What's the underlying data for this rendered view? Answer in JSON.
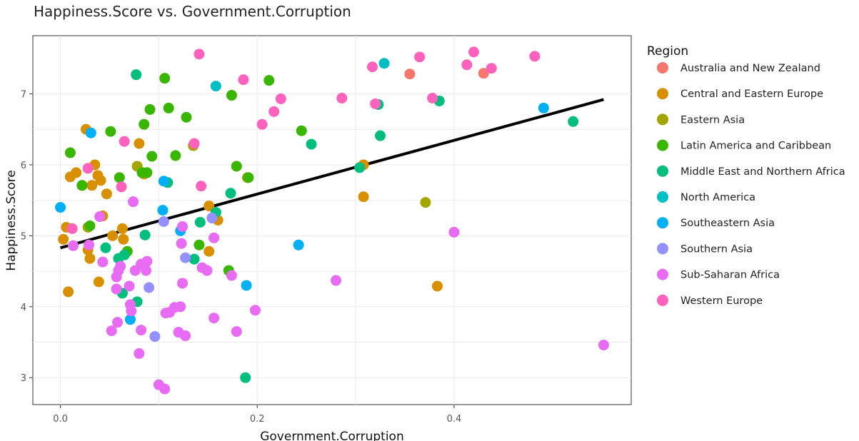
{
  "chart_data": {
    "type": "scatter",
    "title": "Happiness.Score vs. Government.Corruption",
    "xlabel": "Government.Corruption",
    "ylabel": "Happiness.Score",
    "xlim": [
      -0.028,
      0.58
    ],
    "ylim": [
      2.62,
      7.82
    ],
    "x_ticks": [
      0.0,
      0.2,
      0.4
    ],
    "x_tick_labels": [
      "0.0",
      "0.2",
      "0.4"
    ],
    "y_ticks": [
      3,
      4,
      5,
      6,
      7
    ],
    "y_tick_labels": [
      "3",
      "4",
      "5",
      "6",
      "7"
    ],
    "grid": true,
    "legend": {
      "title": "Region",
      "position": "right"
    },
    "trend_line": {
      "x": [
        0.0,
        0.552
      ],
      "y": [
        4.83,
        6.92
      ],
      "color": "#000000"
    },
    "series": [
      {
        "name": "Australia and New Zealand",
        "color": "#F8766D",
        "points": [
          [
            0.355,
            7.28
          ],
          [
            0.43,
            7.29
          ]
        ]
      },
      {
        "name": "Central and Eastern Europe",
        "color": "#D89000",
        "points": [
          [
            0.003,
            4.95
          ],
          [
            0.006,
            5.12
          ],
          [
            0.008,
            4.21
          ],
          [
            0.01,
            5.83
          ],
          [
            0.016,
            5.89
          ],
          [
            0.022,
            5.71
          ],
          [
            0.026,
            6.5
          ],
          [
            0.028,
            4.8
          ],
          [
            0.03,
            4.68
          ],
          [
            0.032,
            5.71
          ],
          [
            0.035,
            6.0
          ],
          [
            0.038,
            5.85
          ],
          [
            0.039,
            4.35
          ],
          [
            0.041,
            5.78
          ],
          [
            0.043,
            5.28
          ],
          [
            0.047,
            5.59
          ],
          [
            0.053,
            5.0
          ],
          [
            0.063,
            5.1
          ],
          [
            0.064,
            4.95
          ],
          [
            0.08,
            6.3
          ],
          [
            0.085,
            5.87
          ],
          [
            0.151,
            5.42
          ],
          [
            0.151,
            4.78
          ],
          [
            0.16,
            5.22
          ],
          [
            0.19,
            5.82
          ],
          [
            0.308,
            6.0
          ],
          [
            0.308,
            5.55
          ],
          [
            0.383,
            4.29
          ]
        ]
      },
      {
        "name": "Eastern Asia",
        "color": "#A3A500",
        "points": [
          [
            0.028,
            5.12
          ],
          [
            0.078,
            5.98
          ],
          [
            0.135,
            6.27
          ],
          [
            0.371,
            5.47
          ]
        ]
      },
      {
        "name": "Latin America and Caribbean",
        "color": "#39B600",
        "points": [
          [
            0.01,
            6.17
          ],
          [
            0.022,
            5.71
          ],
          [
            0.03,
            5.14
          ],
          [
            0.051,
            6.47
          ],
          [
            0.06,
            5.82
          ],
          [
            0.068,
            4.78
          ],
          [
            0.083,
            5.89
          ],
          [
            0.085,
            6.57
          ],
          [
            0.088,
            5.89
          ],
          [
            0.091,
            6.78
          ],
          [
            0.093,
            6.12
          ],
          [
            0.106,
            7.22
          ],
          [
            0.11,
            6.8
          ],
          [
            0.117,
            6.13
          ],
          [
            0.128,
            6.67
          ],
          [
            0.141,
            4.87
          ],
          [
            0.171,
            4.51
          ],
          [
            0.174,
            6.98
          ],
          [
            0.179,
            5.98
          ],
          [
            0.191,
            5.82
          ],
          [
            0.212,
            7.19
          ],
          [
            0.245,
            6.48
          ]
        ]
      },
      {
        "name": "Middle East and Northern Africa",
        "color": "#00BF7D",
        "points": [
          [
            0.046,
            4.83
          ],
          [
            0.059,
            4.68
          ],
          [
            0.063,
            4.19
          ],
          [
            0.065,
            4.73
          ],
          [
            0.077,
            7.27
          ],
          [
            0.078,
            4.07
          ],
          [
            0.086,
            5.01
          ],
          [
            0.109,
            5.75
          ],
          [
            0.136,
            4.67
          ],
          [
            0.142,
            5.19
          ],
          [
            0.158,
            5.33
          ],
          [
            0.173,
            5.6
          ],
          [
            0.188,
            3.0
          ],
          [
            0.255,
            6.29
          ],
          [
            0.304,
            5.96
          ],
          [
            0.323,
            6.85
          ],
          [
            0.325,
            6.41
          ],
          [
            0.385,
            6.9
          ],
          [
            0.521,
            6.61
          ]
        ]
      },
      {
        "name": "North America",
        "color": "#00BFC4",
        "points": [
          [
            0.158,
            7.11
          ],
          [
            0.329,
            7.43
          ]
        ]
      },
      {
        "name": "Southeastern Asia",
        "color": "#00B0F6",
        "points": [
          [
            0.0,
            5.4
          ],
          [
            0.031,
            6.45
          ],
          [
            0.071,
            3.82
          ],
          [
            0.104,
            5.36
          ],
          [
            0.105,
            5.77
          ],
          [
            0.122,
            5.07
          ],
          [
            0.189,
            4.3
          ],
          [
            0.242,
            4.87
          ],
          [
            0.491,
            6.8
          ]
        ]
      },
      {
        "name": "Southern Asia",
        "color": "#9590FF",
        "points": [
          [
            0.09,
            4.27
          ],
          [
            0.096,
            3.58
          ],
          [
            0.105,
            5.2
          ],
          [
            0.127,
            4.69
          ],
          [
            0.154,
            5.25
          ]
        ]
      },
      {
        "name": "Sub-Saharan Africa",
        "color": "#E76BF3",
        "points": [
          [
            0.013,
            4.86
          ],
          [
            0.029,
            4.87
          ],
          [
            0.04,
            5.27
          ],
          [
            0.043,
            4.63
          ],
          [
            0.052,
            3.66
          ],
          [
            0.057,
            4.25
          ],
          [
            0.057,
            4.42
          ],
          [
            0.058,
            3.78
          ],
          [
            0.059,
            4.51
          ],
          [
            0.061,
            4.57
          ],
          [
            0.07,
            4.29
          ],
          [
            0.071,
            4.03
          ],
          [
            0.072,
            3.94
          ],
          [
            0.074,
            5.48
          ],
          [
            0.076,
            4.51
          ],
          [
            0.08,
            3.34
          ],
          [
            0.082,
            3.67
          ],
          [
            0.082,
            4.6
          ],
          [
            0.087,
            4.51
          ],
          [
            0.088,
            4.64
          ],
          [
            0.1,
            2.9
          ],
          [
            0.106,
            2.84
          ],
          [
            0.107,
            3.91
          ],
          [
            0.111,
            3.92
          ],
          [
            0.116,
            3.99
          ],
          [
            0.12,
            3.64
          ],
          [
            0.122,
            4.0
          ],
          [
            0.123,
            4.89
          ],
          [
            0.124,
            5.13
          ],
          [
            0.124,
            4.33
          ],
          [
            0.127,
            3.59
          ],
          [
            0.144,
            4.55
          ],
          [
            0.149,
            4.51
          ],
          [
            0.156,
            4.97
          ],
          [
            0.156,
            3.84
          ],
          [
            0.174,
            4.44
          ],
          [
            0.179,
            3.65
          ],
          [
            0.198,
            3.95
          ],
          [
            0.28,
            4.37
          ],
          [
            0.4,
            5.05
          ],
          [
            0.552,
            3.46
          ]
        ]
      },
      {
        "name": "Western Europe",
        "color": "#FF62BC",
        "points": [
          [
            0.012,
            5.1
          ],
          [
            0.028,
            5.95
          ],
          [
            0.062,
            5.69
          ],
          [
            0.065,
            6.33
          ],
          [
            0.136,
            6.3
          ],
          [
            0.141,
            7.56
          ],
          [
            0.143,
            5.7
          ],
          [
            0.186,
            7.2
          ],
          [
            0.205,
            6.57
          ],
          [
            0.217,
            6.75
          ],
          [
            0.224,
            6.93
          ],
          [
            0.286,
            6.94
          ],
          [
            0.317,
            7.38
          ],
          [
            0.32,
            6.86
          ],
          [
            0.365,
            7.52
          ],
          [
            0.378,
            6.94
          ],
          [
            0.413,
            7.41
          ],
          [
            0.42,
            7.59
          ],
          [
            0.438,
            7.36
          ],
          [
            0.482,
            7.53
          ]
        ]
      }
    ]
  }
}
